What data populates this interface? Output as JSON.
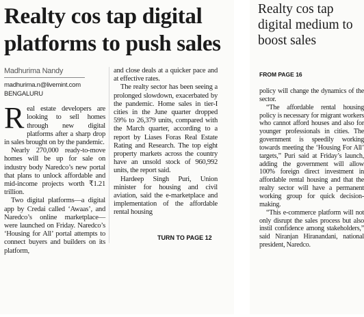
{
  "left_article": {
    "headline": "Realty cos tap digital platforms to push sales",
    "byline": {
      "name": "Madhurima Nandy",
      "email": "madhurima.n@livemint.com",
      "city": "BENGALURU"
    },
    "dropcap": "R",
    "col1_p1": "eal estate developers are looking to sell homes through new digital platforms after a sharp drop in sales brought on by the pandemic.",
    "col1_p2": "Nearly 270,000 ready-to-move homes will be up for sale on industry body Naredco’s new portal that plans to unlock affordable and mid-income projects worth ₹1.21 trillion.",
    "col1_p3": "Two digital platforms—a digital app by Credai called ‘Awaas’, and Naredco’s online marketplace—were launched on Friday. Naredco’s ‘Housing for All’ portal attempts to connect buyers and builders on its platform,",
    "col2_p1": "and close deals at a quicker pace and at effective rates.",
    "col2_p2": "The realty sector has been seeing a prolonged slowdown, exacerbated by the pandemic. Home sales in tier-I cities in the June quarter dropped 59% to 26,379 units, compared with the March quarter, according to a report by Liases Foras Real Estate Rating and Research. The top eight property markets across the country have an unsold stock of 960,992 units, the report said.",
    "col2_p3": "Hardeep Singh Puri, Union minister for housing and civil aviation, said the e-marketplace and implementation of the affordable rental housing",
    "turn_to": "TURN TO PAGE 12"
  },
  "right_article": {
    "headline": "Realty cos tap digital medium to boost sales",
    "from_page": "FROM PAGE 16",
    "p1": "policy will change the dynamics of the sector.",
    "p2": "“The affordable rental housing policy is necessary for migrant workers who cannot afford houses and also for younger professionals in cities. The government is speedily working towards meeting the ‘Housing For All’ targets,” Puri said at Friday’s launch, adding the government will allow 100% foreign direct investment in affordable rental housing and that the realty sector will have a permanent working group for quick decision-making.",
    "p3": "“This e-commerce platform will not only disrupt the sales process but also instil confidence among stakeholders,” said Niranjan Hiranandani, national president, Naredco."
  }
}
